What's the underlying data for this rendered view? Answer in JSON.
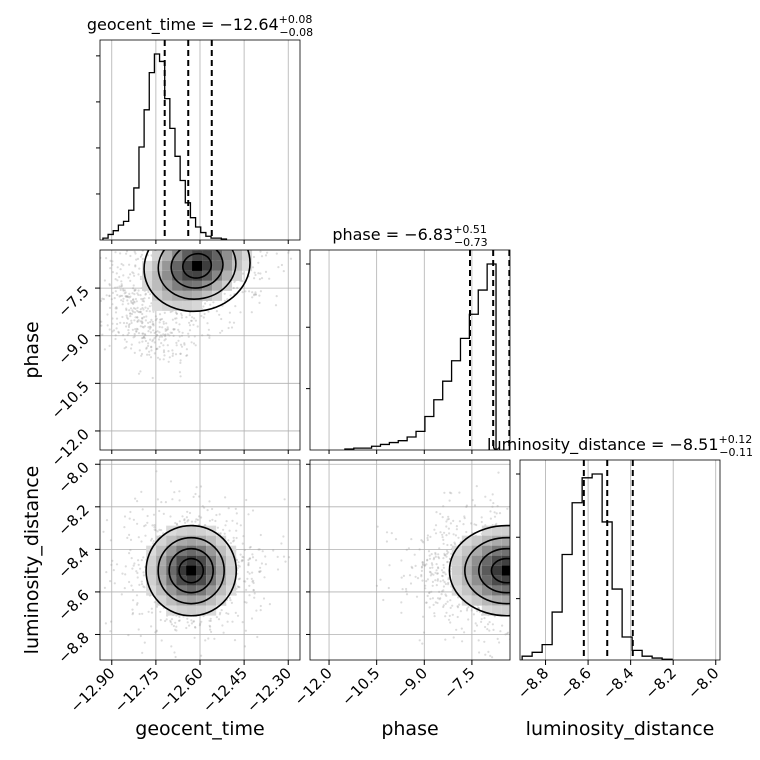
{
  "chart_data": {
    "type": "corner",
    "parameters": [
      {
        "name": "geocent_time",
        "label": "geocent_time",
        "median": -12.64,
        "plus": "+0.08",
        "minus": "−0.08",
        "title_main": "geocent_time = −12.64",
        "range": [
          -12.94,
          -12.26
        ],
        "ticks": [
          -12.9,
          -12.75,
          -12.6,
          -12.45,
          -12.3
        ],
        "tick_labels": [
          "−12.90",
          "−12.75",
          "−12.60",
          "−12.45",
          "−12.30"
        ],
        "quantiles": [
          -12.72,
          -12.64,
          -12.56
        ]
      },
      {
        "name": "phase",
        "label": "phase",
        "median": -6.83,
        "plus": "+0.51",
        "minus": "−0.73",
        "title_main": "phase = −6.83",
        "range": [
          -12.6,
          -6.3
        ],
        "ticks": [
          -12.0,
          -10.5,
          -9.0,
          -7.5
        ],
        "tick_labels": [
          "−12.0",
          "−10.5",
          "−9.0",
          "−7.5"
        ],
        "quantiles": [
          -7.56,
          -6.83,
          -6.32
        ]
      },
      {
        "name": "luminosity_distance",
        "label": "luminosity_distance",
        "median": -8.51,
        "plus": "+0.12",
        "minus": "−0.11",
        "title_main": "luminosity_distance = −8.51",
        "range": [
          -8.92,
          -7.98
        ],
        "ticks": [
          -8.8,
          -8.6,
          -8.4,
          -8.2,
          -8.0
        ],
        "tick_labels": [
          "−8.8",
          "−8.6",
          "−8.4",
          "−8.2",
          "−8.0"
        ],
        "quantiles": [
          -8.62,
          -8.51,
          -8.39
        ]
      }
    ],
    "histograms": [
      {
        "param": "geocent_time",
        "bin_start": -12.93,
        "bin_width": 0.0175,
        "counts": [
          0.01,
          0.03,
          0.05,
          0.08,
          0.1,
          0.16,
          0.28,
          0.5,
          0.7,
          0.9,
          1.0,
          0.96,
          0.76,
          0.6,
          0.45,
          0.32,
          0.2,
          0.12,
          0.07,
          0.04,
          0.02,
          0.01,
          0.01,
          0.005
        ]
      },
      {
        "param": "phase",
        "bin_start": -11.5,
        "bin_width": 0.28,
        "counts": [
          0.005,
          0.01,
          0.01,
          0.02,
          0.03,
          0.04,
          0.05,
          0.07,
          0.1,
          0.18,
          0.27,
          0.37,
          0.48,
          0.6,
          0.73,
          0.86,
          1.0
        ]
      },
      {
        "param": "luminosity_distance",
        "bin_start": -8.91,
        "bin_width": 0.047,
        "counts": [
          0.02,
          0.04,
          0.08,
          0.25,
          0.55,
          0.82,
          0.95,
          0.97,
          0.72,
          0.37,
          0.12,
          0.05,
          0.02,
          0.01,
          0.004
        ]
      }
    ],
    "contours_2d": [
      {
        "x": "geocent_time",
        "y": "phase",
        "peak": [
          -12.61,
          -6.8
        ]
      },
      {
        "x": "geocent_time",
        "y": "luminosity_distance",
        "peak": [
          -12.63,
          -8.5
        ]
      },
      {
        "x": "phase",
        "y": "luminosity_distance",
        "peak": [
          -6.4,
          -8.5
        ]
      }
    ],
    "grid": true
  }
}
